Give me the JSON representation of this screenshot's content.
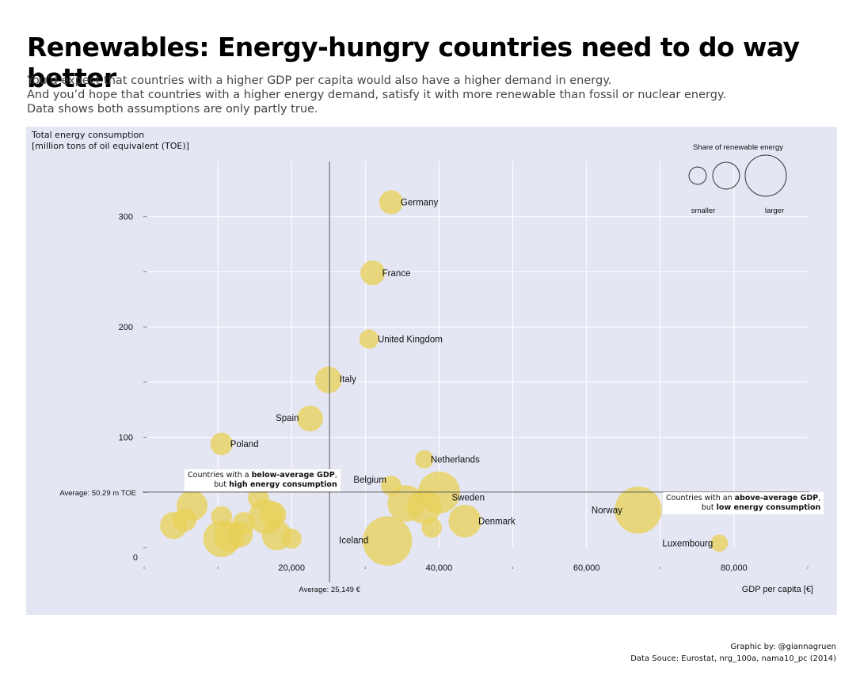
{
  "header": {
    "title": "Renewables: Energy-hungry countries need to do way better",
    "intro": [
      "You’d expect that countries with a higher GDP per capita would also have a higher demand in energy.",
      "And you’d hope that countries with a higher energy demand, satisfy it with more renewable than fossil or nuclear energy.",
      "Data shows both assumptions are only partly true."
    ]
  },
  "footer": {
    "credit": "Graphic by: @giannagruen",
    "source": "Data Souce: Eurostat, nrg_100a, nama10_pc (2014)"
  },
  "annotations": {
    "below": {
      "pre": "Countries with a ",
      "bold": "below-average GDP",
      "post": ",",
      "line2_pre": "but ",
      "line2_bold": "high energy consumption"
    },
    "above": {
      "pre": "Countries with an ",
      "bold": "above-average GDP",
      "post": ",",
      "line2_pre": "but ",
      "line2_bold": "low energy consumption"
    }
  },
  "chart_data": {
    "type": "scatter",
    "title": "Renewables: Energy-hungry countries need to do way better",
    "xlabel": "GDP per capita [€]",
    "ylabel": [
      "Total energy consumption",
      "[million tons of oil equivalent (TOE)]"
    ],
    "xlim": [
      0,
      90000
    ],
    "ylim": [
      0,
      350
    ],
    "x_ticks": [
      20000,
      40000,
      60000,
      80000
    ],
    "x_tick_labels": [
      "20,000",
      "40,000",
      "60,000",
      "80,000"
    ],
    "y_ticks": [
      0,
      100,
      200,
      300
    ],
    "y_tick_labels": [
      "0",
      "100",
      "200",
      "300"
    ],
    "grid": true,
    "point_color": "#e8d15a",
    "bubble_meaning": "Share of renewable energy",
    "size_legend": {
      "title": "Share of renewable energy",
      "smaller": "smaller",
      "larger": "larger"
    },
    "averages": {
      "x": 25149,
      "x_label": "Average: 25,149 €",
      "y": 50.29,
      "y_label": "Average: 50.29 m TOE"
    },
    "points": [
      {
        "name": "Germany",
        "gdp": 33500,
        "energy": 313,
        "renewable": 13
      },
      {
        "name": "France",
        "gdp": 31000,
        "energy": 249,
        "renewable": 14
      },
      {
        "name": "United Kingdom",
        "gdp": 30500,
        "energy": 189,
        "renewable": 7
      },
      {
        "name": "Italy",
        "gdp": 25000,
        "energy": 152,
        "renewable": 17
      },
      {
        "name": "Spain",
        "gdp": 22500,
        "energy": 117,
        "renewable": 16
      },
      {
        "name": "Poland",
        "gdp": 10500,
        "energy": 94,
        "renewable": 11
      },
      {
        "name": "Netherlands",
        "gdp": 38000,
        "energy": 80,
        "renewable": 6
      },
      {
        "name": "Belgium",
        "gdp": 33500,
        "energy": 56,
        "renewable": 8
      },
      {
        "name": "Sweden",
        "gdp": 40000,
        "energy": 50,
        "renewable": 53
      },
      {
        "name": "Denmark",
        "gdp": 43500,
        "energy": 24,
        "renewable": 29
      },
      {
        "name": "Norway",
        "gdp": 67000,
        "energy": 34,
        "renewable": 69
      },
      {
        "name": "Luxembourg",
        "gdp": 78000,
        "energy": 4,
        "renewable": 5
      },
      {
        "name": "Iceland",
        "gdp": 33000,
        "energy": 6,
        "renewable": 77
      },
      {
        "name": "",
        "gdp": 6500,
        "energy": 38,
        "renewable": 25
      },
      {
        "name": "",
        "gdp": 4000,
        "energy": 20,
        "renewable": 18
      },
      {
        "name": "",
        "gdp": 5500,
        "energy": 25,
        "renewable": 12
      },
      {
        "name": "",
        "gdp": 10500,
        "energy": 28,
        "renewable": 9
      },
      {
        "name": "",
        "gdp": 10500,
        "energy": 8,
        "renewable": 38
      },
      {
        "name": "",
        "gdp": 11500,
        "energy": 10,
        "renewable": 24
      },
      {
        "name": "",
        "gdp": 13500,
        "energy": 22,
        "renewable": 11
      },
      {
        "name": "",
        "gdp": 13000,
        "energy": 12,
        "renewable": 16
      },
      {
        "name": "",
        "gdp": 15500,
        "energy": 45,
        "renewable": 9
      },
      {
        "name": "",
        "gdp": 16500,
        "energy": 28,
        "renewable": 33
      },
      {
        "name": "",
        "gdp": 17500,
        "energy": 30,
        "renewable": 16
      },
      {
        "name": "",
        "gdp": 18000,
        "energy": 11,
        "renewable": 23
      },
      {
        "name": "",
        "gdp": 20000,
        "energy": 8,
        "renewable": 8
      },
      {
        "name": "",
        "gdp": 38000,
        "energy": 37,
        "renewable": 33
      },
      {
        "name": "",
        "gdp": 35500,
        "energy": 40,
        "renewable": 38
      },
      {
        "name": "",
        "gdp": 39000,
        "energy": 18,
        "renewable": 8
      }
    ]
  }
}
